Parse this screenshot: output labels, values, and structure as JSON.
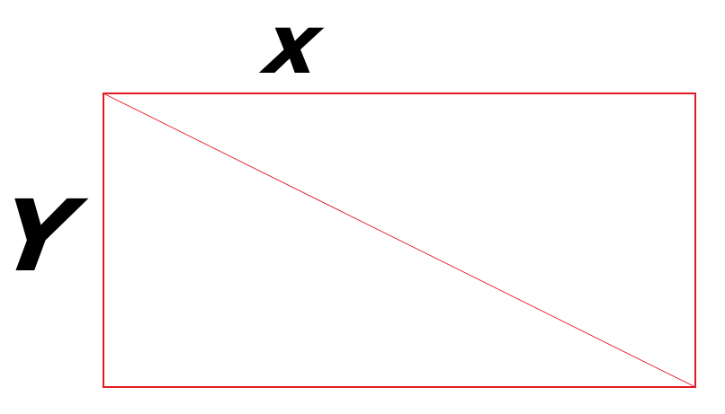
{
  "labels": {
    "top": "x",
    "left": "Y"
  },
  "colors": {
    "rectangle_stroke": "#e31b23",
    "diagonal_stroke": "#e31b23",
    "label_text": "#000000",
    "background": "#ffffff"
  }
}
